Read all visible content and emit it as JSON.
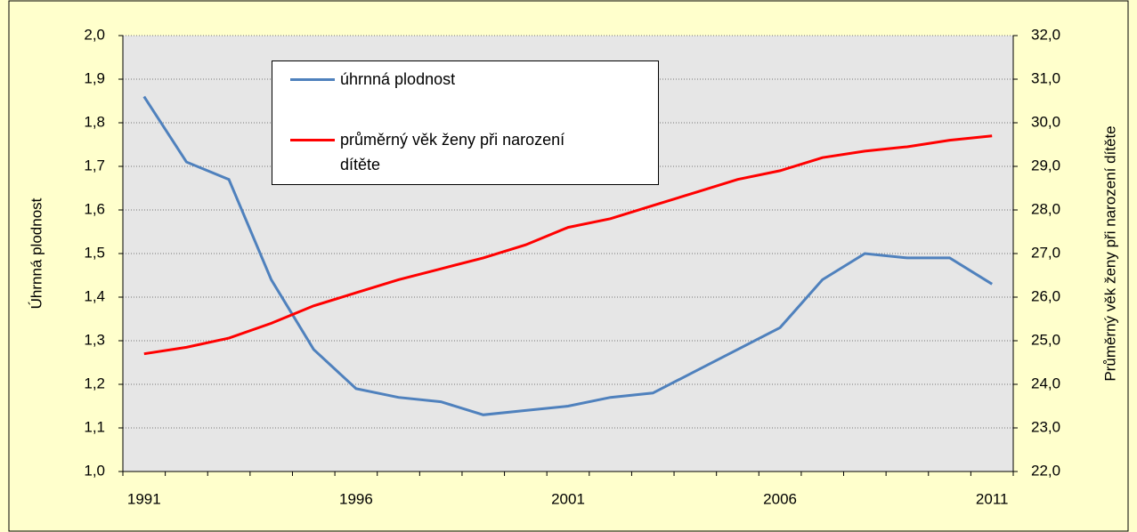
{
  "chart_data": {
    "type": "line",
    "x": [
      1991,
      1992,
      1993,
      1994,
      1995,
      1996,
      1997,
      1998,
      1999,
      2000,
      2001,
      2002,
      2003,
      2004,
      2005,
      2006,
      2007,
      2008,
      2009,
      2010,
      2011
    ],
    "xlim": [
      1990.5,
      2011.5
    ],
    "xticks": [
      1991,
      1996,
      2001,
      2006,
      2011
    ],
    "ylabel": "Úhrnná plodnost",
    "y2label": "Průměrný  věk ženy při narození dítěte",
    "ylim": [
      1.0,
      2.0
    ],
    "yticks": [
      {
        "value": 1.0,
        "label": "1,0"
      },
      {
        "value": 1.1,
        "label": "1,1"
      },
      {
        "value": 1.2,
        "label": "1,2"
      },
      {
        "value": 1.3,
        "label": "1,3"
      },
      {
        "value": 1.4,
        "label": "1,4"
      },
      {
        "value": 1.5,
        "label": "1,5"
      },
      {
        "value": 1.6,
        "label": "1,6"
      },
      {
        "value": 1.7,
        "label": "1,7"
      },
      {
        "value": 1.8,
        "label": "1,8"
      },
      {
        "value": 1.9,
        "label": "1,9"
      },
      {
        "value": 2.0,
        "label": "2,0"
      }
    ],
    "y2lim": [
      22.0,
      32.0
    ],
    "y2ticks": [
      {
        "value": 22,
        "label": "22,0"
      },
      {
        "value": 23,
        "label": "23,0"
      },
      {
        "value": 24,
        "label": "24,0"
      },
      {
        "value": 25,
        "label": "25,0"
      },
      {
        "value": 26,
        "label": "26,0"
      },
      {
        "value": 27,
        "label": "27,0"
      },
      {
        "value": 28,
        "label": "28,0"
      },
      {
        "value": 29,
        "label": "29,0"
      },
      {
        "value": 30,
        "label": "30,0"
      },
      {
        "value": 31,
        "label": "31,0"
      },
      {
        "value": 32,
        "label": "32,0"
      }
    ],
    "grid": true,
    "series": [
      {
        "name": "úhrnná plodnost",
        "color": "#4f81bd",
        "values": [
          1.86,
          1.71,
          1.67,
          1.44,
          1.28,
          1.19,
          1.17,
          1.16,
          1.13,
          1.14,
          1.15,
          1.17,
          1.18,
          1.23,
          1.28,
          1.33,
          1.44,
          1.5,
          1.49,
          1.49,
          1.43
        ]
      },
      {
        "name": "průměrný věk ženy při narození dítěte",
        "color": "#ff0000",
        "axis": "y2",
        "values": [
          24.7,
          24.85,
          25.06,
          25.4,
          25.8,
          26.1,
          26.4,
          26.65,
          26.9,
          27.2,
          27.6,
          27.8,
          28.1,
          28.4,
          28.7,
          28.9,
          29.2,
          29.35,
          29.45,
          29.6,
          29.7
        ]
      }
    ]
  }
}
